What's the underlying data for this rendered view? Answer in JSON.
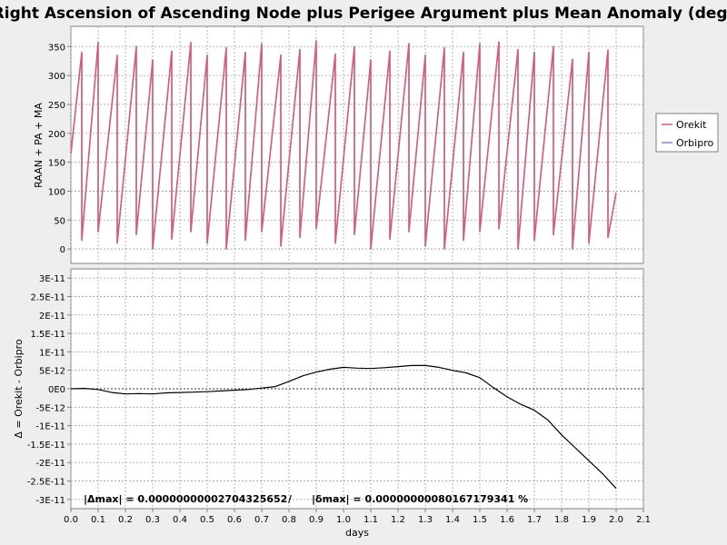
{
  "title": "Right Ascension of Ascending Node plus Perigee Argument plus Mean Anomaly (deg)",
  "colors": {
    "background": "#eeeeee",
    "plot_background": "#ffffff",
    "grid": "#a0a0a0",
    "orekit": "#e05a6e",
    "orbipro": "#8a7fd0",
    "delta": "#000000"
  },
  "legend": {
    "items": [
      {
        "label": "Orekit",
        "color": "#e05a6e"
      },
      {
        "label": "Orbipro",
        "color": "#8a7fd0"
      }
    ],
    "placement": "right"
  },
  "annotation": {
    "delta_max": "|Δmax| = 0.00000000002704325652",
    "separator": "/",
    "rel_max": "|δmax| = 0.00000000080167179341 %"
  },
  "chart_data": [
    {
      "type": "line",
      "ylabel": "RAAN + PA + MA",
      "xlim": [
        0.0,
        2.1
      ],
      "ylim": [
        -25,
        385
      ],
      "yticks": [
        "0",
        "50",
        "100",
        "150",
        "200",
        "250",
        "300",
        "350"
      ],
      "grid": true,
      "series": [
        {
          "name": "Orekit",
          "color": "#e05a6e",
          "x": [
            0.0,
            0.04,
            0.04,
            0.1,
            0.1,
            0.17,
            0.17,
            0.24,
            0.24,
            0.3,
            0.3,
            0.37,
            0.37,
            0.44,
            0.44,
            0.5,
            0.5,
            0.57,
            0.57,
            0.64,
            0.64,
            0.7,
            0.7,
            0.77,
            0.77,
            0.84,
            0.84,
            0.9,
            0.9,
            0.97,
            0.97,
            1.04,
            1.04,
            1.1,
            1.1,
            1.17,
            1.17,
            1.24,
            1.24,
            1.3,
            1.3,
            1.37,
            1.37,
            1.44,
            1.44,
            1.5,
            1.5,
            1.57,
            1.57,
            1.64,
            1.64,
            1.7,
            1.7,
            1.77,
            1.77,
            1.84,
            1.84,
            1.9,
            1.9,
            1.97,
            1.97,
            2.0
          ],
          "y": [
            165,
            340,
            15,
            357,
            30,
            335,
            10,
            350,
            25,
            327,
            0,
            342,
            17,
            357,
            30,
            335,
            10,
            348,
            0,
            340,
            15,
            355,
            30,
            335,
            5,
            345,
            20,
            360,
            35,
            337,
            10,
            350,
            25,
            327,
            0,
            342,
            17,
            355,
            30,
            335,
            5,
            348,
            0,
            340,
            15,
            355,
            30,
            358,
            35,
            345,
            0,
            340,
            15,
            350,
            25,
            328,
            0,
            340,
            10,
            344,
            20,
            97
          ]
        },
        {
          "name": "Orbipro",
          "color": "#8a7fd0",
          "x": [
            0.0,
            0.04,
            0.04,
            0.1,
            0.1,
            0.17,
            0.17,
            0.24,
            0.24,
            0.3,
            0.3,
            0.37,
            0.37,
            0.44,
            0.44,
            0.5,
            0.5,
            0.57,
            0.57,
            0.64,
            0.64,
            0.7,
            0.7,
            0.77,
            0.77,
            0.84,
            0.84,
            0.9,
            0.9,
            0.97,
            0.97,
            1.04,
            1.04,
            1.1,
            1.1,
            1.17,
            1.17,
            1.24,
            1.24,
            1.3,
            1.3,
            1.37,
            1.37,
            1.44,
            1.44,
            1.5,
            1.5,
            1.57,
            1.57,
            1.64,
            1.64,
            1.7,
            1.7,
            1.77,
            1.77,
            1.84,
            1.84,
            1.9,
            1.9,
            1.97,
            1.97,
            2.0
          ],
          "y": [
            165,
            340,
            15,
            357,
            30,
            335,
            10,
            350,
            25,
            327,
            0,
            342,
            17,
            357,
            30,
            335,
            10,
            348,
            0,
            340,
            15,
            355,
            30,
            335,
            5,
            345,
            20,
            360,
            35,
            337,
            10,
            350,
            25,
            327,
            0,
            342,
            17,
            355,
            30,
            335,
            5,
            348,
            0,
            340,
            15,
            355,
            30,
            358,
            35,
            345,
            0,
            340,
            15,
            350,
            25,
            328,
            0,
            340,
            10,
            344,
            20,
            97
          ]
        }
      ]
    },
    {
      "type": "line",
      "xlabel": "days",
      "ylabel": "Δ = Orekit - Orbipro",
      "xlim": [
        0.0,
        2.1
      ],
      "ylim": [
        -3.25e-11,
        3.25e-11
      ],
      "xticks": [
        "0.0",
        "0.1",
        "0.2",
        "0.3",
        "0.4",
        "0.5",
        "0.6",
        "0.7",
        "0.8",
        "0.9",
        "1.0",
        "1.1",
        "1.2",
        "1.3",
        "1.4",
        "1.5",
        "1.6",
        "1.7",
        "1.8",
        "1.9",
        "2.0",
        "2.1"
      ],
      "yticks": [
        "-3E-11",
        "-2.5E-11",
        "-2E-11",
        "-1.5E-11",
        "-1E-11",
        "-5E-12",
        "0E0",
        "5E-12",
        "1E-11",
        "1.5E-11",
        "2E-11",
        "2.5E-11",
        "3E-11"
      ],
      "grid": true,
      "series": [
        {
          "color": "#000000",
          "x": [
            0.0,
            0.05,
            0.1,
            0.15,
            0.2,
            0.25,
            0.3,
            0.35,
            0.4,
            0.45,
            0.5,
            0.55,
            0.6,
            0.65,
            0.7,
            0.75,
            0.8,
            0.85,
            0.9,
            0.95,
            1.0,
            1.05,
            1.1,
            1.15,
            1.2,
            1.25,
            1.3,
            1.35,
            1.4,
            1.45,
            1.5,
            1.55,
            1.6,
            1.65,
            1.7,
            1.75,
            1.8,
            1.85,
            1.9,
            1.95,
            2.0
          ],
          "y": [
            0,
            1e-13,
            -2e-13,
            -1e-12,
            -1.4e-12,
            -1.3e-12,
            -1.4e-12,
            -1.1e-12,
            -1e-12,
            -9e-13,
            -8e-13,
            -6e-13,
            -4e-13,
            -2e-13,
            2e-13,
            6e-13,
            2e-12,
            3.5e-12,
            4.5e-12,
            5.3e-12,
            5.8e-12,
            5.6e-12,
            5.5e-12,
            5.7e-12,
            6e-12,
            6.3e-12,
            6.3e-12,
            5.8e-12,
            5e-12,
            4.3e-12,
            3e-12,
            3e-13,
            -2.2e-12,
            -4.2e-12,
            -5.8e-12,
            -8.5e-12,
            -1.25e-11,
            -1.6e-11,
            -1.95e-11,
            -2.3e-11,
            -2.7e-11
          ]
        }
      ]
    }
  ]
}
